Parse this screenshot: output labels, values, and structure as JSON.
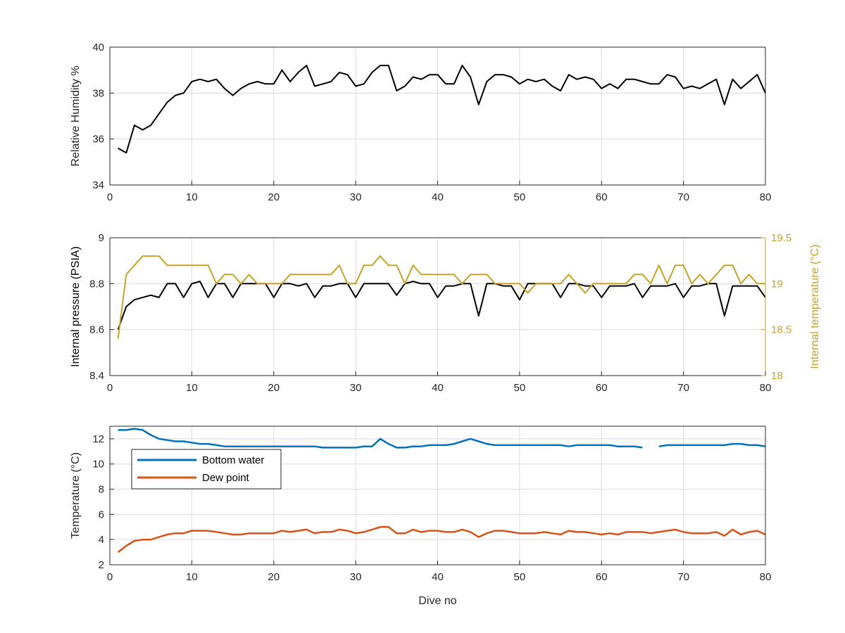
{
  "chart_data": [
    {
      "type": "line",
      "title": "",
      "xlabel": "",
      "ylabel": "Relative Humidity %",
      "xlim": [
        0,
        80
      ],
      "ylim": [
        34,
        40
      ],
      "xticks": [
        0,
        10,
        20,
        30,
        40,
        50,
        60,
        70,
        80
      ],
      "yticks": [
        34,
        36,
        38,
        40
      ],
      "grid": true,
      "series": [
        {
          "color": "#000000",
          "x": [
            1,
            2,
            3,
            4,
            5,
            6,
            7,
            8,
            9,
            10,
            11,
            12,
            13,
            14,
            15,
            16,
            17,
            18,
            19,
            20,
            21,
            22,
            23,
            24,
            25,
            26,
            27,
            28,
            29,
            30,
            31,
            32,
            33,
            34,
            35,
            36,
            37,
            38,
            39,
            40,
            41,
            42,
            43,
            44,
            45,
            46,
            47,
            48,
            49,
            50,
            51,
            52,
            53,
            54,
            55,
            56,
            57,
            58,
            59,
            60,
            61,
            62,
            63,
            64,
            65,
            66,
            67,
            68,
            69,
            70,
            71,
            72,
            73,
            74,
            75,
            76,
            77,
            78,
            79,
            80
          ],
          "y": [
            35.6,
            35.4,
            36.6,
            36.4,
            36.6,
            37.1,
            37.6,
            37.9,
            38.0,
            38.5,
            38.6,
            38.5,
            38.6,
            38.2,
            37.9,
            38.2,
            38.4,
            38.5,
            38.4,
            38.4,
            39.0,
            38.5,
            38.9,
            39.2,
            38.3,
            38.4,
            38.5,
            38.9,
            38.8,
            38.3,
            38.4,
            38.9,
            39.2,
            39.2,
            38.1,
            38.3,
            38.7,
            38.6,
            38.8,
            38.8,
            38.4,
            38.4,
            39.2,
            38.7,
            37.5,
            38.5,
            38.8,
            38.8,
            38.7,
            38.4,
            38.6,
            38.5,
            38.6,
            38.3,
            38.1,
            38.8,
            38.6,
            38.7,
            38.6,
            38.2,
            38.4,
            38.2,
            38.6,
            38.6,
            38.5,
            38.4,
            38.4,
            38.8,
            38.7,
            38.2,
            38.3,
            38.2,
            38.4,
            38.6,
            37.5,
            38.6,
            38.2,
            38.5,
            38.8,
            38.0
          ]
        }
      ]
    },
    {
      "type": "line",
      "title": "",
      "xlabel": "",
      "ylabel": "Internal pressure (PSIA)",
      "y2label": "Internal temperature (°C)",
      "xlim": [
        0,
        80
      ],
      "ylim": [
        8.4,
        9
      ],
      "y2lim": [
        18,
        19.5
      ],
      "xticks": [
        0,
        10,
        20,
        30,
        40,
        50,
        60,
        70,
        80
      ],
      "yticks": [
        8.4,
        8.6,
        8.8,
        9
      ],
      "y2ticks": [
        18,
        18.5,
        19,
        19.5
      ],
      "grid": true,
      "series": [
        {
          "axis": "left",
          "color": "#000000",
          "x": [
            1,
            2,
            3,
            4,
            5,
            6,
            7,
            8,
            9,
            10,
            11,
            12,
            13,
            14,
            15,
            16,
            17,
            18,
            19,
            20,
            21,
            22,
            23,
            24,
            25,
            26,
            27,
            28,
            29,
            30,
            31,
            32,
            33,
            34,
            35,
            36,
            37,
            38,
            39,
            40,
            41,
            42,
            43,
            44,
            45,
            46,
            47,
            48,
            49,
            50,
            51,
            52,
            53,
            54,
            55,
            56,
            57,
            58,
            59,
            60,
            61,
            62,
            63,
            64,
            65,
            66,
            67,
            68,
            69,
            70,
            71,
            72,
            73,
            74,
            75,
            76,
            77,
            78,
            79,
            80
          ],
          "y": [
            8.6,
            8.7,
            8.73,
            8.74,
            8.75,
            8.74,
            8.8,
            8.8,
            8.74,
            8.8,
            8.81,
            8.74,
            8.8,
            8.8,
            8.74,
            8.8,
            8.8,
            8.8,
            8.8,
            8.74,
            8.8,
            8.8,
            8.79,
            8.8,
            8.74,
            8.79,
            8.79,
            8.8,
            8.8,
            8.74,
            8.8,
            8.8,
            8.8,
            8.8,
            8.75,
            8.8,
            8.81,
            8.8,
            8.8,
            8.74,
            8.79,
            8.79,
            8.8,
            8.8,
            8.66,
            8.8,
            8.8,
            8.79,
            8.79,
            8.73,
            8.8,
            8.8,
            8.8,
            8.8,
            8.74,
            8.8,
            8.8,
            8.79,
            8.79,
            8.74,
            8.79,
            8.79,
            8.79,
            8.8,
            8.74,
            8.79,
            8.79,
            8.79,
            8.8,
            8.74,
            8.79,
            8.79,
            8.8,
            8.8,
            8.66,
            8.79,
            8.79,
            8.79,
            8.79,
            8.74
          ]
        },
        {
          "axis": "right",
          "color": "#c9a227",
          "x": [
            1,
            2,
            3,
            4,
            5,
            6,
            7,
            8,
            9,
            10,
            11,
            12,
            13,
            14,
            15,
            16,
            17,
            18,
            19,
            20,
            21,
            22,
            23,
            24,
            25,
            26,
            27,
            28,
            29,
            30,
            31,
            32,
            33,
            34,
            35,
            36,
            37,
            38,
            39,
            40,
            41,
            42,
            43,
            44,
            45,
            46,
            47,
            48,
            49,
            50,
            51,
            52,
            53,
            54,
            55,
            56,
            57,
            58,
            59,
            60,
            61,
            62,
            63,
            64,
            65,
            66,
            67,
            68,
            69,
            70,
            71,
            72,
            73,
            74,
            75,
            76,
            77,
            78,
            79,
            80
          ],
          "y": [
            18.4,
            19.1,
            19.2,
            19.3,
            19.3,
            19.3,
            19.2,
            19.2,
            19.2,
            19.2,
            19.2,
            19.2,
            19.0,
            19.1,
            19.1,
            19.0,
            19.1,
            19.0,
            19.0,
            19.0,
            19.0,
            19.1,
            19.1,
            19.1,
            19.1,
            19.1,
            19.1,
            19.2,
            19.0,
            19.0,
            19.2,
            19.2,
            19.3,
            19.2,
            19.2,
            19.0,
            19.2,
            19.1,
            19.1,
            19.1,
            19.1,
            19.1,
            19.0,
            19.1,
            19.1,
            19.1,
            19.0,
            19.0,
            19.0,
            19.0,
            18.9,
            19.0,
            19.0,
            19.0,
            19.0,
            19.1,
            19.0,
            18.9,
            19.0,
            19.0,
            19.0,
            19.0,
            19.0,
            19.1,
            19.1,
            19.0,
            19.2,
            19.0,
            19.2,
            19.2,
            19.0,
            19.1,
            19.0,
            19.1,
            19.2,
            19.2,
            19.0,
            19.1,
            19.0,
            19.0
          ]
        }
      ]
    },
    {
      "type": "line",
      "title": "",
      "xlabel": "Dive no",
      "ylabel": "Temperature (°C)",
      "xlim": [
        0,
        80
      ],
      "ylim": [
        2,
        13
      ],
      "xticks": [
        0,
        10,
        20,
        30,
        40,
        50,
        60,
        70,
        80
      ],
      "yticks": [
        2,
        4,
        6,
        8,
        10,
        12
      ],
      "grid": true,
      "legend": "top-left",
      "series": [
        {
          "name": "Bottom water",
          "color": "#0072bd",
          "x": [
            1,
            2,
            3,
            4,
            5,
            6,
            7,
            8,
            9,
            10,
            11,
            12,
            13,
            14,
            15,
            16,
            17,
            18,
            19,
            20,
            21,
            22,
            23,
            24,
            25,
            26,
            27,
            28,
            29,
            30,
            31,
            32,
            33,
            34,
            35,
            36,
            37,
            38,
            39,
            40,
            41,
            42,
            43,
            44,
            45,
            46,
            47,
            48,
            49,
            50,
            51,
            52,
            53,
            54,
            55,
            56,
            57,
            58,
            59,
            60,
            61,
            62,
            63,
            64,
            65,
            66,
            67,
            68,
            69,
            70,
            71,
            72,
            73,
            74,
            75,
            76,
            77,
            78,
            79,
            80
          ],
          "y": [
            12.7,
            12.7,
            12.8,
            12.7,
            12.3,
            12.0,
            11.9,
            11.8,
            11.8,
            11.7,
            11.6,
            11.6,
            11.5,
            11.4,
            11.4,
            11.4,
            11.4,
            11.4,
            11.4,
            11.4,
            11.4,
            11.4,
            11.4,
            11.4,
            11.4,
            11.3,
            11.3,
            11.3,
            11.3,
            11.3,
            11.4,
            11.4,
            12.0,
            11.6,
            11.3,
            11.3,
            11.4,
            11.4,
            11.5,
            11.5,
            11.5,
            11.6,
            11.8,
            12.0,
            11.8,
            11.6,
            11.5,
            11.5,
            11.5,
            11.5,
            11.5,
            11.5,
            11.5,
            11.5,
            11.5,
            11.4,
            11.5,
            11.5,
            11.5,
            11.5,
            11.5,
            11.4,
            11.4,
            11.4,
            11.3,
            null,
            11.4,
            11.5,
            11.5,
            11.5,
            11.5,
            11.5,
            11.5,
            11.5,
            11.5,
            11.6,
            11.6,
            11.5,
            11.5,
            11.4
          ]
        },
        {
          "name": "Dew point",
          "color": "#d95319",
          "x": [
            1,
            2,
            3,
            4,
            5,
            6,
            7,
            8,
            9,
            10,
            11,
            12,
            13,
            14,
            15,
            16,
            17,
            18,
            19,
            20,
            21,
            22,
            23,
            24,
            25,
            26,
            27,
            28,
            29,
            30,
            31,
            32,
            33,
            34,
            35,
            36,
            37,
            38,
            39,
            40,
            41,
            42,
            43,
            44,
            45,
            46,
            47,
            48,
            49,
            50,
            51,
            52,
            53,
            54,
            55,
            56,
            57,
            58,
            59,
            60,
            61,
            62,
            63,
            64,
            65,
            66,
            67,
            68,
            69,
            70,
            71,
            72,
            73,
            74,
            75,
            76,
            77,
            78,
            79,
            80
          ],
          "y": [
            3.0,
            3.5,
            3.9,
            4.0,
            4.0,
            4.2,
            4.4,
            4.5,
            4.5,
            4.7,
            4.7,
            4.7,
            4.6,
            4.5,
            4.4,
            4.4,
            4.5,
            4.5,
            4.5,
            4.5,
            4.7,
            4.6,
            4.7,
            4.8,
            4.5,
            4.6,
            4.6,
            4.8,
            4.7,
            4.5,
            4.6,
            4.8,
            5.0,
            5.0,
            4.5,
            4.5,
            4.8,
            4.6,
            4.7,
            4.7,
            4.6,
            4.6,
            4.8,
            4.6,
            4.2,
            4.5,
            4.7,
            4.7,
            4.6,
            4.5,
            4.5,
            4.5,
            4.6,
            4.5,
            4.4,
            4.7,
            4.6,
            4.6,
            4.5,
            4.4,
            4.5,
            4.4,
            4.6,
            4.6,
            4.6,
            4.5,
            4.6,
            4.7,
            4.8,
            4.6,
            4.5,
            4.5,
            4.5,
            4.6,
            4.3,
            4.8,
            4.4,
            4.6,
            4.7,
            4.4
          ]
        }
      ]
    }
  ]
}
